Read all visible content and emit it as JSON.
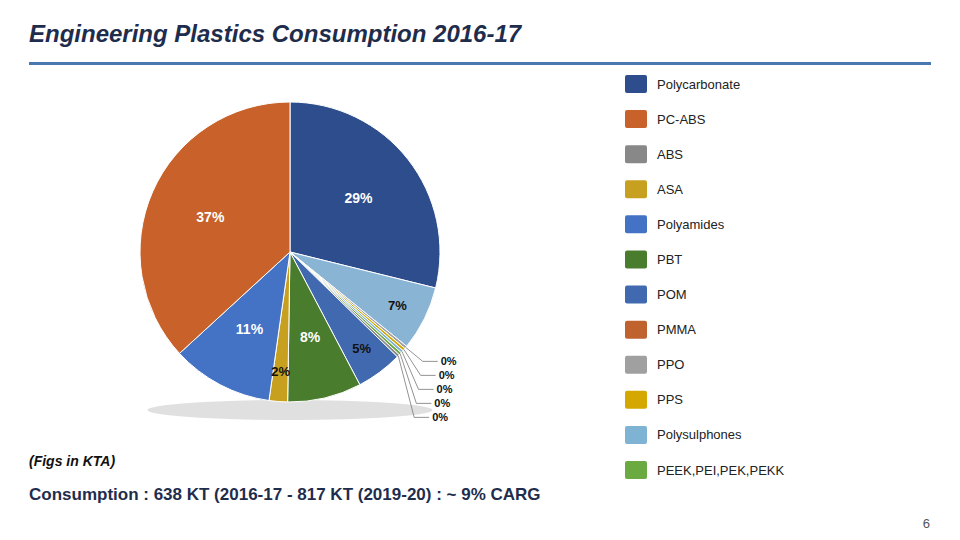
{
  "chart_data": {
    "type": "pie",
    "title": "Engineering Plastics Consumption 2016-17",
    "subtitle": "(Figs in KTA)",
    "annotations": [
      "Consumption : 638 KT (2016-17 - 817 KT (2019-20) : ~ 9% CARG",
      "6"
    ],
    "values": [
      29,
      7,
      0.3,
      0.3,
      0.3,
      0.3,
      0.3,
      5,
      8,
      2,
      11,
      37
    ],
    "value_labels": [
      "29%",
      "7%",
      "0%",
      "0%",
      "0%",
      "0%",
      "0%",
      "5%",
      "8%",
      "2%",
      "11%",
      "37%"
    ],
    "colors": [
      "#2e4d8c",
      "#8ab4d4",
      "#a0a0a0",
      "#d4a800",
      "#7fb3d3",
      "#6aaa40",
      "#888888",
      "#4169b0",
      "#4a7c2e",
      "#c8a020",
      "#4472c4",
      "#c8622a"
    ],
    "data_labels": true,
    "legend": "right",
    "legend_items": [
      {
        "name": "Polycarbonate",
        "color": "#2e4d8c"
      },
      {
        "name": "PC-ABS",
        "color": "#c8622a"
      },
      {
        "name": "ABS",
        "color": "#888888"
      },
      {
        "name": "ASA",
        "color": "#c8a020"
      },
      {
        "name": "Polyamides",
        "color": "#4472c4"
      },
      {
        "name": "PBT",
        "color": "#4a7c2e"
      },
      {
        "name": "POM",
        "color": "#4169b0"
      },
      {
        "name": "PMMA",
        "color": "#c0622e"
      },
      {
        "name": "PPO",
        "color": "#a0a0a0"
      },
      {
        "name": "PPS",
        "color": "#d4a800"
      },
      {
        "name": "Polysulphones",
        "color": "#7fb3d3"
      },
      {
        "name": "PEEK,PEI,PEK,PEKK",
        "color": "#6aaa40"
      }
    ]
  }
}
